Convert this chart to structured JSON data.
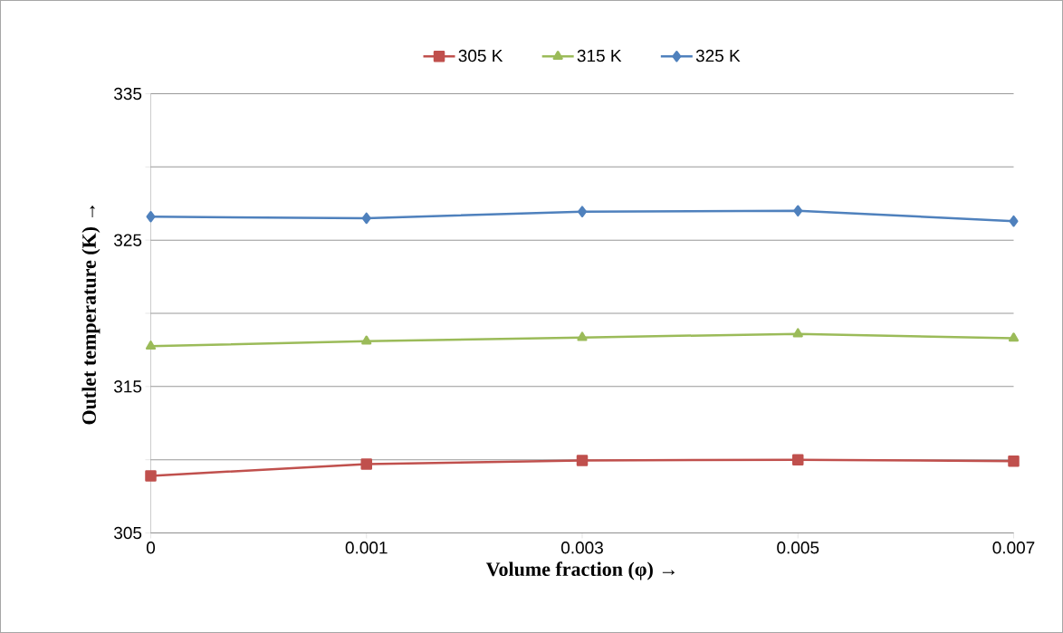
{
  "chart_data": {
    "type": "line",
    "xlabel": "Volume fraction (φ) →",
    "ylabel": "Outlet temperature (K) →",
    "categories": [
      "0",
      "0.001",
      "0.003",
      "0.005",
      "0.007"
    ],
    "series": [
      {
        "name": "305 K",
        "color": "#c0504d",
        "marker": "square",
        "values": [
          308.9,
          309.7,
          309.95,
          310.0,
          309.9
        ]
      },
      {
        "name": "315 K",
        "color": "#9bbb59",
        "marker": "triangle",
        "values": [
          317.75,
          318.1,
          318.35,
          318.6,
          318.3
        ]
      },
      {
        "name": "325 K",
        "color": "#4f81bd",
        "marker": "diamond",
        "values": [
          326.6,
          326.5,
          326.95,
          327.0,
          326.3
        ]
      }
    ],
    "ylim": [
      305,
      335
    ],
    "yticks": [
      305,
      {
        "value": 310,
        "label": null
      },
      315,
      {
        "value": 320,
        "label": null
      },
      325,
      {
        "value": 330,
        "label": null
      },
      335
    ],
    "grid": "y",
    "legend": "top",
    "line_style": "solid"
  }
}
